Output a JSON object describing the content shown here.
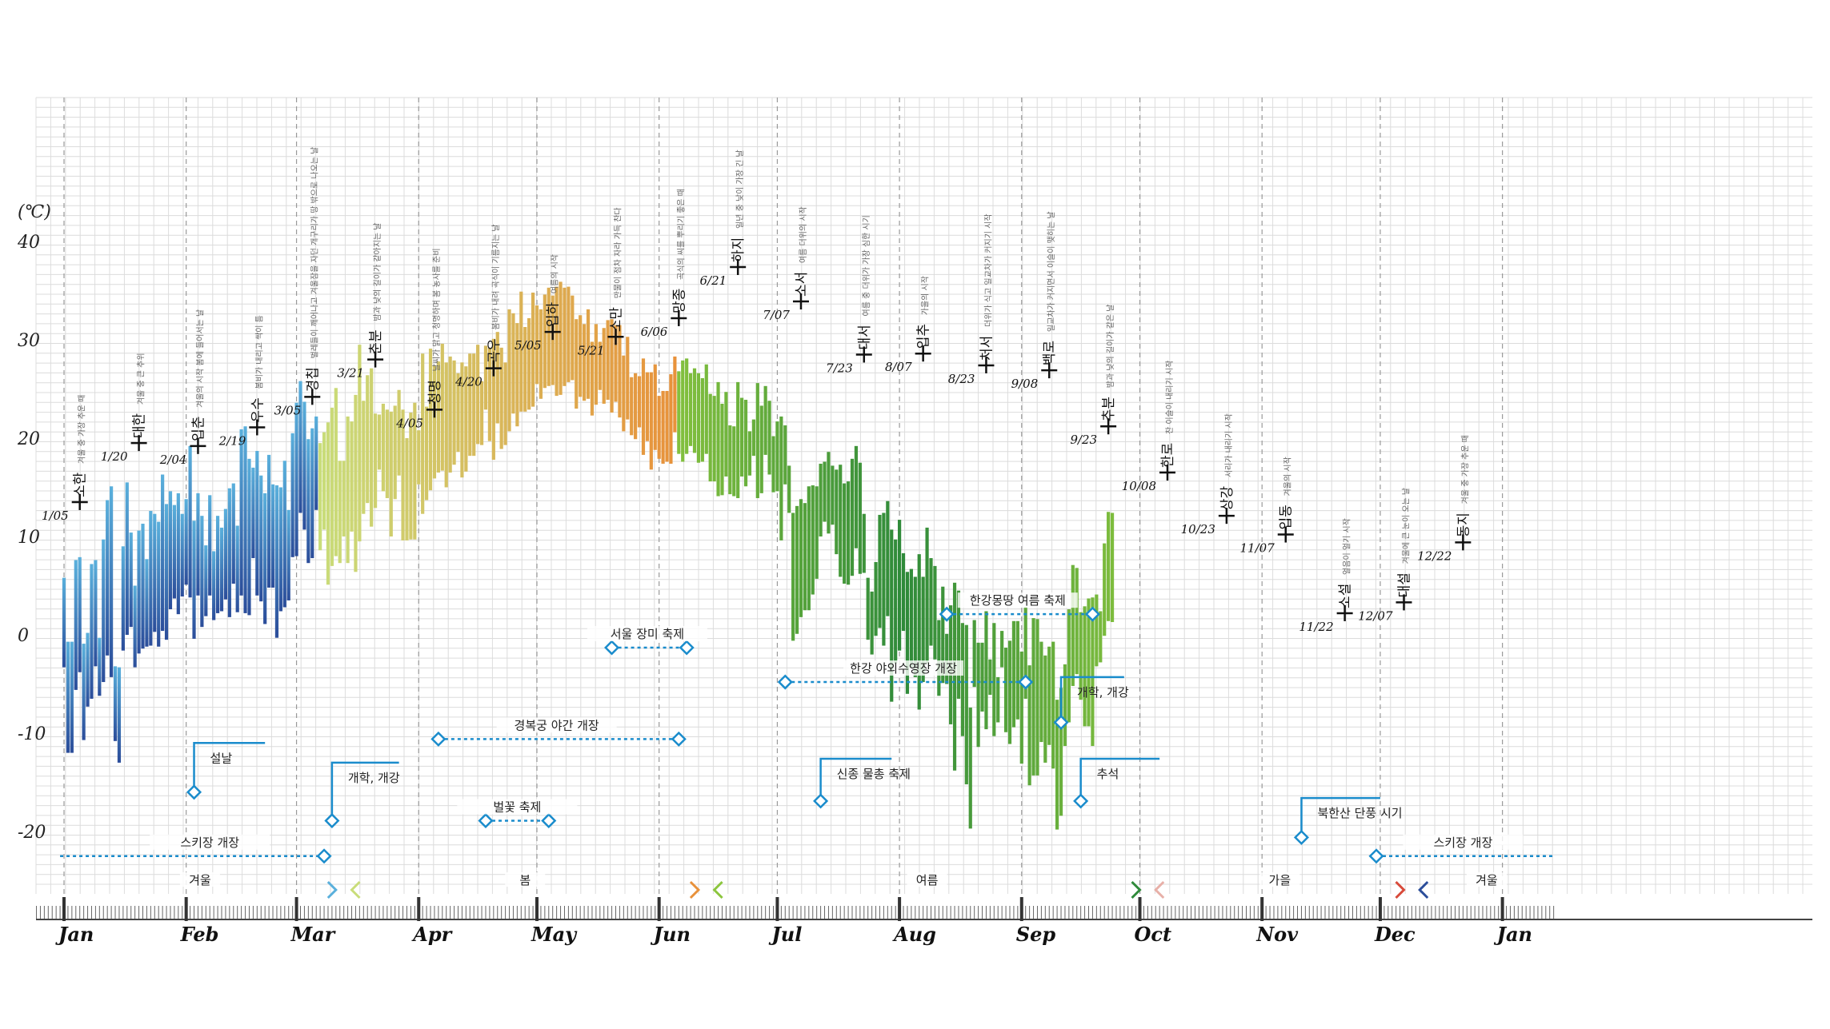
{
  "chart_data": {
    "type": "bar",
    "unit_label": "(℃)",
    "ylim": [
      -26,
      54
    ],
    "yticks": [
      40,
      30,
      20,
      10,
      0,
      -10,
      -20
    ],
    "months": [
      "Jan",
      "Feb",
      "Mar",
      "Apr",
      "May",
      "Jun",
      "Jul",
      "Aug",
      "Sep",
      "Oct",
      "Nov",
      "Dec",
      "Jan"
    ],
    "colors": {
      "winter_top": "#5ab0dc",
      "winter_bottom": "#2b4d9a",
      "spring_a": "#c9dd7a",
      "spring_b": "#e8913a",
      "summer_a": "#2f8a3a",
      "summer_b": "#8cc63e",
      "autumn_a": "#e06a5a",
      "autumn_b": "#e8b0a8",
      "event": "#1a8ccc",
      "term": "#111111"
    },
    "bars": [
      [
        -3.3,
        5.8
      ],
      [
        -12,
        -0.7
      ],
      [
        -12,
        -0.7
      ],
      [
        -5.6,
        7.6
      ],
      [
        -3.8,
        7.9
      ],
      [
        -10.7,
        -0.9
      ],
      [
        -7.3,
        0.2
      ],
      [
        -6.5,
        7.2
      ],
      [
        -3.2,
        7.6
      ],
      [
        -6.2,
        -0.3
      ],
      [
        -4.8,
        9.7
      ],
      [
        -2.1,
        13.7
      ],
      [
        -4.3,
        15.1
      ],
      [
        -10.8,
        -3.2
      ],
      [
        -13,
        -3.3
      ],
      [
        -1.6,
        9
      ],
      [
        0,
        15.5
      ],
      [
        0.8,
        10.4
      ],
      [
        -3.3,
        5
      ],
      [
        -1.9,
        10.6
      ],
      [
        -1.4,
        11.3
      ],
      [
        -1.2,
        7.7
      ],
      [
        -1.1,
        12.6
      ],
      [
        0.3,
        12.3
      ],
      [
        -1.2,
        11.5
      ],
      [
        0.4,
        16.3
      ],
      [
        -0.5,
        13.3
      ],
      [
        2.6,
        14.6
      ],
      [
        3.7,
        13.2
      ],
      [
        2.1,
        14.4
      ],
      [
        3.9,
        12.3
      ],
      [
        5.1,
        13.8
      ],
      [
        3.8,
        19.2
      ],
      [
        -0.4,
        11.6
      ],
      [
        4,
        14.4
      ],
      [
        0.8,
        12.1
      ],
      [
        1.9,
        9.1
      ],
      [
        4,
        14.2
      ],
      [
        1.5,
        8.5
      ],
      [
        2.2,
        12.1
      ],
      [
        2.4,
        10.9
      ],
      [
        3.6,
        12.8
      ],
      [
        1.8,
        14.9
      ],
      [
        5.2,
        15.4
      ],
      [
        2.3,
        11.1
      ],
      [
        4,
        20.9
      ],
      [
        2.2,
        21.2
      ],
      [
        2,
        17.9
      ],
      [
        7.8,
        17
      ],
      [
        4,
        18.7
      ],
      [
        3.4,
        16.2
      ],
      [
        1.1,
        14.4
      ],
      [
        4.8,
        18.3
      ],
      [
        4.8,
        15.3
      ],
      [
        -0.3,
        15.2
      ],
      [
        2.4,
        15
      ],
      [
        2.8,
        17.7
      ],
      [
        3.5,
        12.7
      ],
      [
        7.9,
        20.5
      ],
      [
        8,
        23.6
      ],
      [
        12.4,
        25.8
      ],
      [
        10.7,
        23.7
      ],
      [
        7.3,
        19.9
      ],
      [
        7.8,
        21
      ],
      [
        12.7,
        22.2
      ],
      [
        8.6,
        19.5
      ],
      [
        10.7,
        20.6
      ],
      [
        5.1,
        21.6
      ],
      [
        7,
        23.1
      ],
      [
        8,
        25.1
      ],
      [
        7.3,
        17.7
      ],
      [
        10,
        17.7
      ],
      [
        7.3,
        22.2
      ],
      [
        10.5,
        21.7
      ],
      [
        6.4,
        24.4
      ],
      [
        9.5,
        29.5
      ],
      [
        12.3,
        23.8
      ],
      [
        13.4,
        26.4
      ],
      [
        11,
        27.1
      ],
      [
        12.9,
        22.5
      ],
      [
        16.8,
        22.4
      ],
      [
        14.6,
        23.5
      ],
      [
        13.9,
        22.9
      ],
      [
        10,
        22.7
      ],
      [
        13.8,
        23.3
      ],
      [
        16.2,
        24.9
      ],
      [
        9.6,
        22.9
      ],
      [
        9.6,
        20
      ],
      [
        9.7,
        22.6
      ],
      [
        9.7,
        23.6
      ],
      [
        15.3,
        20.8
      ],
      [
        12.3,
        28.6
      ],
      [
        13.7,
        23.2
      ],
      [
        14.7,
        29.1
      ],
      [
        15.9,
        27.4
      ],
      [
        16.5,
        27.8
      ],
      [
        16.7,
        29.6
      ],
      [
        15,
        27.7
      ],
      [
        16.5,
        28.3
      ],
      [
        17.3,
        27.9
      ],
      [
        18.6,
        26.6
      ],
      [
        16,
        27.7
      ],
      [
        16.6,
        27.3
      ],
      [
        18.2,
        28.6
      ],
      [
        18.2,
        28.6
      ],
      [
        19.4,
        29.5
      ],
      [
        19.3,
        25.8
      ],
      [
        22.9,
        29.4
      ],
      [
        19.7,
        29.2
      ],
      [
        17.8,
        30.1
      ],
      [
        21.5,
        30.8
      ],
      [
        18.9,
        29.2
      ],
      [
        19.3,
        27.7
      ],
      [
        20.7,
        33.1
      ],
      [
        22.5,
        32.7
      ],
      [
        21.2,
        31.7
      ],
      [
        22.7,
        34.9
      ],
      [
        22.7,
        31.3
      ],
      [
        22.9,
        32.2
      ],
      [
        23.2,
        34.8
      ],
      [
        25.5,
        33.5
      ],
      [
        24,
        33.1
      ],
      [
        25.1,
        34.6
      ],
      [
        25.3,
        35.3
      ],
      [
        25.4,
        34.5
      ],
      [
        24.3,
        35.4
      ],
      [
        24.4,
        35.9
      ],
      [
        25.3,
        35.3
      ],
      [
        25.7,
        35.4
      ],
      [
        25.9,
        34.5
      ],
      [
        23,
        32.1
      ],
      [
        24.2,
        32.5
      ],
      [
        23.8,
        31.6
      ],
      [
        24,
        33.1
      ],
      [
        22.3,
        29.8
      ],
      [
        23.4,
        31.6
      ],
      [
        24.9,
        29.8
      ],
      [
        23.5,
        31.2
      ],
      [
        23.9,
        32
      ],
      [
        22.6,
        32.1
      ],
      [
        23.7,
        31.5
      ],
      [
        22.1,
        31.5
      ],
      [
        20.7,
        28.4
      ],
      [
        21.9,
        30.3
      ],
      [
        20.3,
        26.2
      ],
      [
        19.9,
        26.6
      ],
      [
        21.1,
        26.3
      ],
      [
        18.3,
        28.1
      ],
      [
        19.7,
        26.7
      ],
      [
        16.8,
        26.7
      ],
      [
        18.8,
        27.5
      ],
      [
        17.9,
        24.3
      ],
      [
        17.4,
        24.8
      ],
      [
        17.6,
        24.8
      ],
      [
        17.4,
        26.5
      ],
      [
        20.6,
        28.3
      ],
      [
        18.4,
        26.8
      ],
      [
        17.6,
        27.9
      ],
      [
        18.4,
        28.1
      ],
      [
        19.2,
        26.6
      ],
      [
        18.5,
        27.1
      ],
      [
        17.5,
        26.6
      ],
      [
        17.6,
        26.1
      ],
      [
        18.4,
        27.5
      ],
      [
        15.6,
        24.5
      ],
      [
        15.6,
        24.3
      ],
      [
        14.1,
        25.7
      ],
      [
        14.2,
        23.5
      ],
      [
        16.1,
        24.7
      ],
      [
        14.3,
        21.3
      ],
      [
        14.1,
        21.2
      ],
      [
        13.9,
        25.7
      ],
      [
        16.1,
        24.1
      ],
      [
        15.1,
        23.9
      ],
      [
        16.2,
        20.7
      ],
      [
        18.2,
        21.9
      ],
      [
        13.9,
        25.6
      ],
      [
        14.4,
        23.3
      ],
      [
        18.3,
        25.3
      ],
      [
        16.3,
        23.8
      ],
      [
        14.5,
        20.2
      ],
      [
        14.6,
        21.7
      ],
      [
        9.6,
        22.2
      ],
      [
        15.3,
        21.3
      ],
      [
        12.4,
        17.2
      ],
      [
        -0.6,
        12.4
      ],
      [
        0.1,
        13.1
      ],
      [
        1.8,
        13.8
      ],
      [
        2.5,
        13.4
      ],
      [
        2.5,
        15.1
      ],
      [
        4.1,
        15.2
      ],
      [
        5.7,
        15.1
      ],
      [
        10,
        17.4
      ],
      [
        11.5,
        17.6
      ],
      [
        10.3,
        18.6
      ],
      [
        11.2,
        17.2
      ],
      [
        8.2,
        16.8
      ],
      [
        5.9,
        17.3
      ],
      [
        5.2,
        15.4
      ],
      [
        5.1,
        15.6
      ],
      [
        6,
        17.9
      ],
      [
        8.8,
        19.2
      ],
      [
        6.2,
        17.5
      ],
      [
        6.3,
        12.3
      ],
      [
        -0.5,
        5.8
      ],
      [
        -2,
        4.4
      ],
      [
        -0.1,
        7.4
      ],
      [
        0.7,
        12.2
      ],
      [
        -1.1,
        12.4
      ],
      [
        1.9,
        13.6
      ],
      [
        -6.8,
        10.7
      ],
      [
        -2.9,
        9.7
      ],
      [
        -1.6,
        11.7
      ],
      [
        0.4,
        8.3
      ],
      [
        -6,
        6.4
      ],
      [
        -3.3,
        6.7
      ],
      [
        -4.3,
        5.9
      ],
      [
        -7.6,
        8.2
      ],
      [
        -4.8,
        5.9
      ],
      [
        -2.9,
        10.9
      ],
      [
        -1.1,
        7.8
      ],
      [
        -2.5,
        7
      ],
      [
        -6.2,
        1.5
      ],
      [
        -4.9,
        4.9
      ],
      [
        -5,
        0.1
      ],
      [
        -9.1,
        3
      ],
      [
        -13.8,
        5.3
      ],
      [
        -6.5,
        4.5
      ],
      [
        -10.3,
        1.2
      ],
      [
        -15.2,
        1
      ],
      [
        -19.7,
        -7.4
      ],
      [
        -5.3,
        1.5
      ],
      [
        -11.4,
        -0.8
      ],
      [
        -7.8,
        -0.8
      ],
      [
        -9.6,
        2.4
      ],
      [
        -6.1,
        -2.5
      ],
      [
        -10.3,
        1.2
      ],
      [
        -8.9,
        -4.3
      ],
      [
        -3.3,
        0.4
      ],
      [
        -9.9,
        -1.3
      ],
      [
        -11.1,
        -0.6
      ],
      [
        -9.4,
        1.4
      ],
      [
        -8.6,
        1.4
      ],
      [
        -13.1,
        -1.7
      ],
      [
        -6.5,
        2.8
      ],
      [
        -15.3,
        -3.1
      ],
      [
        -14.3,
        1.7
      ],
      [
        -14.3,
        1.6
      ],
      [
        -10.9,
        -0.7
      ],
      [
        -13,
        -2.1
      ],
      [
        -11.2,
        -1.2
      ],
      [
        -13.6,
        -0.7
      ],
      [
        -19.8,
        -6.6
      ],
      [
        -18.4,
        -5.4
      ],
      [
        -11.3,
        -3
      ],
      [
        -8.9,
        2.6
      ],
      [
        -5.2,
        7.1
      ],
      [
        -4,
        6.8
      ],
      [
        -6.6,
        2.3
      ],
      [
        -9.3,
        2.9
      ],
      [
        -9.3,
        3.7
      ],
      [
        -11.3,
        3.8
      ],
      [
        -3.2,
        4.1
      ],
      [
        -2.8,
        2.4
      ],
      [
        -0.1,
        9.3
      ],
      [
        1.4,
        12.5
      ],
      [
        1.3,
        12.4
      ]
    ],
    "solar_terms": [
      {
        "date": "1/05",
        "name": "소한",
        "desc": "겨울 중 가장 추운 때",
        "temp": 13.5
      },
      {
        "date": "1/20",
        "name": "대한",
        "desc": "겨울 중 큰 추위",
        "temp": 19.5
      },
      {
        "date": "2/04",
        "name": "입춘",
        "desc": "겨울의 시작 봄에 들어서는 날",
        "temp": 19.2
      },
      {
        "date": "2/19",
        "name": "우수",
        "desc": "봄비가 내리고 싹이 틈",
        "temp": 21.1
      },
      {
        "date": "3/05",
        "name": "경칩",
        "desc": "벌레들이 깨어나고 겨울잠을 자던 개구리가 땅 밖으로 나오는 날",
        "temp": 24.2
      },
      {
        "date": "3/21",
        "name": "춘분",
        "desc": "밤과 낮의 길이가 같아지는 날",
        "temp": 28
      },
      {
        "date": "4/05",
        "name": "청명",
        "desc": "날씨가 맑고 청명하며 봄 농사를 준비",
        "temp": 22.9
      },
      {
        "date": "4/20",
        "name": "곡우",
        "desc": "봄비가 내려 곡식이 기름지는 날",
        "temp": 27.1
      },
      {
        "date": "5/05",
        "name": "입하",
        "desc": "여름의 시작",
        "temp": 30.8
      },
      {
        "date": "5/21",
        "name": "소만",
        "desc": "만물이 점차 자라 가득 찬다",
        "temp": 30.3
      },
      {
        "date": "6/06",
        "name": "망종",
        "desc": "곡식의 씨를 뿌리기 좋은 때",
        "temp": 32.2
      },
      {
        "date": "6/21",
        "name": "하지",
        "desc": "일년 중 낮이 가장 긴 날",
        "temp": 37.4
      },
      {
        "date": "7/07",
        "name": "소서",
        "desc": "여름 더위의 시작",
        "temp": 33.9
      },
      {
        "date": "7/23",
        "name": "대서",
        "desc": "여름 중 더위가 가장 심한 시기",
        "temp": 28.5
      },
      {
        "date": "8/07",
        "name": "입추",
        "desc": "가을의 시작",
        "temp": 28.6
      },
      {
        "date": "8/23",
        "name": "처서",
        "desc": "더위가 식고 일교차가 커지기 시작",
        "temp": 27.4
      },
      {
        "date": "9/08",
        "name": "백로",
        "desc": "일교차가 커지면서 이슬이 맺히는 날",
        "temp": 26.9
      },
      {
        "date": "9/23",
        "name": "추분",
        "desc": "밤과 낮의 길이가 같은 날",
        "temp": 21.2
      },
      {
        "date": "10/08",
        "name": "한로",
        "desc": "찬 이슬이 내리기 시작",
        "temp": 16.5
      },
      {
        "date": "10/23",
        "name": "상강",
        "desc": "서리가 내리기 시작",
        "temp": 12.1
      },
      {
        "date": "11/07",
        "name": "입동",
        "desc": "겨울의 시작",
        "temp": 10.2
      },
      {
        "date": "11/22",
        "name": "소설",
        "desc": "얼음이 얼기 시작",
        "temp": 2.2
      },
      {
        "date": "12/07",
        "name": "대설",
        "desc": "겨울에 큰 눈이 오는 날",
        "temp": 3.3
      },
      {
        "date": "12/22",
        "name": "동지",
        "desc": "겨울 중 가장 추운 때",
        "temp": 9.4
      }
    ],
    "range_events": [
      {
        "label": "스키장 개장",
        "start": -1,
        "end": 66,
        "temp": -22.5,
        "start_marker": false,
        "end_marker": true,
        "label_at": 37
      },
      {
        "label": "스키장 개장",
        "start": 333,
        "end": 378,
        "temp": -22.5,
        "start_marker": true,
        "end_marker": false,
        "label_at": 355
      },
      {
        "label": "경복궁 야간 개장",
        "start": 95,
        "end": 156,
        "temp": -10.6,
        "start_marker": true,
        "end_marker": true,
        "label_at": 125
      },
      {
        "label": "벌꽃 축제",
        "start": 107,
        "end": 123,
        "temp": -18.9,
        "start_marker": true,
        "end_marker": true,
        "label_at": 115
      },
      {
        "label": "서울 장미 축제",
        "start": 139,
        "end": 158,
        "temp": -1.3,
        "start_marker": true,
        "end_marker": true,
        "label_at": 148
      },
      {
        "label": "한강 야외수영장 개장",
        "start": 183,
        "end": 244,
        "temp": -4.8,
        "start_marker": true,
        "end_marker": true,
        "label_at": 213
      },
      {
        "label": "한강몽땅 여름 축제",
        "start": 224,
        "end": 261,
        "temp": 2.1,
        "start_marker": true,
        "end_marker": true,
        "label_at": 242
      }
    ],
    "point_events": [
      {
        "label": "설날",
        "day": 33,
        "temp": -16,
        "line_top": -11,
        "line_end": 51
      },
      {
        "label": "개학, 개강",
        "day": 68,
        "temp": -18.9,
        "line_top": -13,
        "line_end": 85
      },
      {
        "label": "신종 물총 축제",
        "day": 192,
        "temp": -16.9,
        "line_top": -12.6,
        "line_end": 210
      },
      {
        "label": "개학, 개강",
        "day": 253,
        "temp": -8.9,
        "line_top": -4.3,
        "line_end": 269
      },
      {
        "label": "추석",
        "day": 258,
        "temp": -16.9,
        "line_top": -12.6,
        "line_end": 278
      },
      {
        "label": "북한산 단풍 시기",
        "day": 314,
        "temp": -20.6,
        "line_top": -16.6,
        "line_end": 334
      }
    ],
    "seasons": [
      {
        "label": "겨울",
        "start": 0,
        "end": 69,
        "color": "#2b4d9a",
        "color2": "#5ab0dc",
        "left_arrow": false,
        "right_arrow": true
      },
      {
        "label": "봄",
        "start": 73,
        "end": 161,
        "color": "#c9dd7a",
        "color2": "#e8913a",
        "left_arrow": true,
        "right_arrow": true
      },
      {
        "label": "여름",
        "start": 165,
        "end": 273,
        "color": "#8cc63e",
        "color2": "#2f8a3a",
        "left_arrow": true,
        "right_arrow": true
      },
      {
        "label": "가을",
        "start": 277,
        "end": 340,
        "color": "#e8b0a8",
        "color2": "#d84a3a",
        "left_arrow": true,
        "right_arrow": true
      },
      {
        "label": "겨울",
        "start": 344,
        "end": 378,
        "color": "#2b4d9a",
        "color2": "#5ab0dc",
        "left_arrow": true,
        "right_arrow": false
      }
    ]
  }
}
